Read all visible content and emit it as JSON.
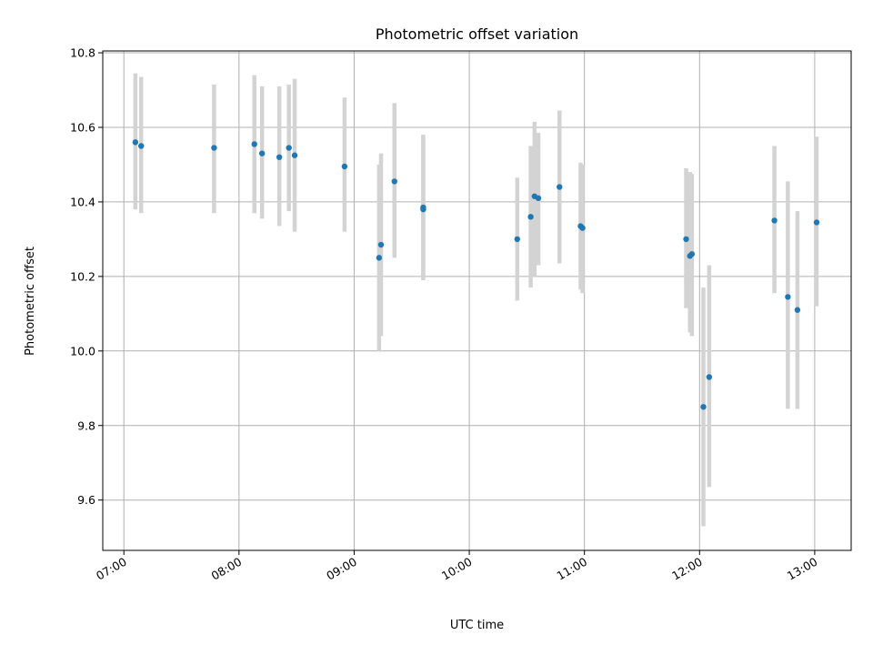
{
  "chart_data": {
    "type": "scatter",
    "title": "Photometric offset variation",
    "xlabel": "UTC time",
    "ylabel": "Photometric offset",
    "xlim": [
      "06:49",
      "13:19"
    ],
    "ylim": [
      9.465,
      10.805
    ],
    "grid": true,
    "x_ticks": [
      "07:00",
      "08:00",
      "09:00",
      "10:00",
      "11:00",
      "12:00",
      "13:00"
    ],
    "y_ticks": [
      "9.6",
      "9.8",
      "10.0",
      "10.2",
      "10.4",
      "10.6",
      "10.8"
    ],
    "colors": {
      "points": "#1f77b4",
      "error_bars": "#d3d3d3",
      "grid": "#b0b0b0"
    },
    "points": [
      {
        "x": "07:06",
        "y": 10.56,
        "low": 10.38,
        "high": 10.745
      },
      {
        "x": "07:09",
        "y": 10.55,
        "low": 10.37,
        "high": 10.735
      },
      {
        "x": "07:47",
        "y": 10.545,
        "low": 10.37,
        "high": 10.715
      },
      {
        "x": "08:08",
        "y": 10.555,
        "low": 10.37,
        "high": 10.74
      },
      {
        "x": "08:12",
        "y": 10.53,
        "low": 10.355,
        "high": 10.71
      },
      {
        "x": "08:21",
        "y": 10.52,
        "low": 10.335,
        "high": 10.71
      },
      {
        "x": "08:26",
        "y": 10.545,
        "low": 10.375,
        "high": 10.715
      },
      {
        "x": "08:29",
        "y": 10.525,
        "low": 10.32,
        "high": 10.73
      },
      {
        "x": "08:55",
        "y": 10.495,
        "low": 10.32,
        "high": 10.68
      },
      {
        "x": "09:13",
        "y": 10.25,
        "low": 10.0,
        "high": 10.5
      },
      {
        "x": "09:14",
        "y": 10.285,
        "low": 10.04,
        "high": 10.53
      },
      {
        "x": "09:21",
        "y": 10.455,
        "low": 10.25,
        "high": 10.665
      },
      {
        "x": "09:36",
        "y": 10.38,
        "low": 10.19,
        "high": 10.58
      },
      {
        "x": "09:36",
        "y": 10.385,
        "low": 10.195,
        "high": 10.575
      },
      {
        "x": "10:25",
        "y": 10.3,
        "low": 10.135,
        "high": 10.465
      },
      {
        "x": "10:32",
        "y": 10.36,
        "low": 10.17,
        "high": 10.55
      },
      {
        "x": "10:34",
        "y": 10.415,
        "low": 10.2,
        "high": 10.615
      },
      {
        "x": "10:36",
        "y": 10.41,
        "low": 10.23,
        "high": 10.585
      },
      {
        "x": "10:47",
        "y": 10.44,
        "low": 10.235,
        "high": 10.645
      },
      {
        "x": "10:58",
        "y": 10.335,
        "low": 10.165,
        "high": 10.505
      },
      {
        "x": "10:59",
        "y": 10.33,
        "low": 10.155,
        "high": 10.5
      },
      {
        "x": "11:53",
        "y": 10.3,
        "low": 10.115,
        "high": 10.49
      },
      {
        "x": "11:55",
        "y": 10.255,
        "low": 10.05,
        "high": 10.48
      },
      {
        "x": "11:56",
        "y": 10.26,
        "low": 10.04,
        "high": 10.475
      },
      {
        "x": "12:02",
        "y": 9.85,
        "low": 9.53,
        "high": 10.17
      },
      {
        "x": "12:05",
        "y": 9.93,
        "low": 9.635,
        "high": 10.23
      },
      {
        "x": "12:39",
        "y": 10.35,
        "low": 10.155,
        "high": 10.55
      },
      {
        "x": "12:46",
        "y": 10.145,
        "low": 9.845,
        "high": 10.455
      },
      {
        "x": "12:51",
        "y": 10.11,
        "low": 9.845,
        "high": 10.375
      },
      {
        "x": "13:01",
        "y": 10.345,
        "low": 10.12,
        "high": 10.575
      }
    ]
  }
}
